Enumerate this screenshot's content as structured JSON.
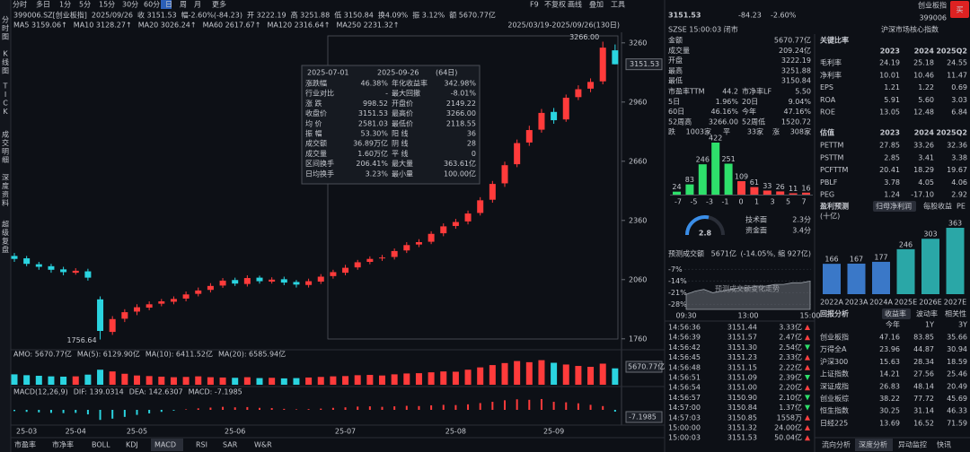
{
  "toolbar": {
    "tabs": [
      "分时",
      "多日",
      "1分",
      "5分",
      "15分",
      "30分",
      "60分",
      "日",
      "周",
      "月",
      "更多"
    ],
    "right": [
      "F9",
      "不复权",
      "画线",
      "叠加",
      "工具"
    ]
  },
  "side_tabs": [
    "分时图",
    "K线图",
    "TICK",
    "成交明细",
    "深度资料",
    "超级复盘"
  ],
  "kline_header": [
    [
      "399006.SZ[创业板指]",
      "#d9dce2"
    ],
    [
      "2025/09/26",
      "#d9dce2"
    ],
    [
      "收 3151.53",
      "#2ee06b"
    ],
    [
      "幅-2.60%(-84.23)",
      "#2ee06b"
    ],
    [
      "开 3222.19",
      "#ff4040"
    ],
    [
      "高 3251.88",
      "#ff4040"
    ],
    [
      "低 3150.84",
      "#2ee06b"
    ],
    [
      "换4.09%",
      "#d9dce2"
    ],
    [
      "振 3.12%",
      "#d9dce2"
    ],
    [
      "额 5670.77亿",
      "#d9dce2"
    ]
  ],
  "ma_line": [
    [
      "MA5 3159.06↑",
      "#f0a030"
    ],
    [
      "MA10 3128.27↑",
      "#f0e040"
    ],
    [
      "MA20 3026.24↑",
      "#e040e0"
    ],
    [
      "MA60 2617.67↑",
      "#40d040"
    ],
    [
      "MA120 2316.64↑",
      "#40c8d0"
    ],
    [
      "MA250 2231.32↑",
      "#4a7cff"
    ]
  ],
  "range": "2025/03/19-2025/09/26(130日)",
  "popup": {
    "start": "2025-07-01",
    "end": "2025-09-26",
    "days": "(64日)",
    "rows": [
      [
        "涨跌幅",
        "46.38%",
        "#ff4040"
      ],
      [
        "年化收益率",
        "342.98%",
        "#ff4040"
      ],
      [
        "行业对比",
        "-",
        "#c5c8cf"
      ],
      [
        "最大回撤",
        "-8.01%",
        "#2ee06b"
      ],
      [
        "涨 跌",
        "998.52",
        "#ff4040"
      ],
      [
        "开盘价",
        "2149.22",
        "#ff4040"
      ],
      [
        "收盘价",
        "3151.53",
        "#ff4040"
      ],
      [
        "最高价",
        "3266.00",
        "#ff4040"
      ],
      [
        "均 价",
        "2581.03",
        "#ff4040"
      ],
      [
        "最低价",
        "2118.55",
        "#ff4040"
      ],
      [
        "振 幅",
        "53.30%",
        "#ff4040"
      ],
      [
        "阳 线",
        "36",
        "#ff4040"
      ],
      [
        "成交额",
        "36.89万亿",
        "#c5c8cf"
      ],
      [
        "阴 线",
        "28",
        "#2ee06b"
      ],
      [
        "成交量",
        "1.60万亿",
        "#c5c8cf"
      ],
      [
        "平 线",
        "0",
        "#c5c8cf"
      ],
      [
        "区间换手",
        "206.41%",
        "#c5c8cf"
      ],
      [
        "最大量",
        "363.61亿",
        "#c5c8cf"
      ],
      [
        "日均换手",
        "3.23%",
        "#c5c8cf"
      ],
      [
        "最小量",
        "100.00亿",
        "#c5c8cf"
      ]
    ]
  },
  "amo_header": [
    [
      "AMO: 5670.77亿",
      "#d9dce2"
    ],
    [
      "MA(5): 6129.90亿",
      "#d9dce2"
    ],
    [
      "MA(10): 6411.52亿",
      "#f0e040"
    ],
    [
      "MA(20): 6585.94亿",
      "#e040e0"
    ]
  ],
  "macd_header": [
    [
      "MACD(12,26,9)",
      "#d9dce2"
    ],
    [
      "DIF: 139.0314",
      "#d9dce2"
    ],
    [
      "DEA: 142.6307",
      "#f0e040"
    ],
    [
      "MACD: -7.1985",
      "#e040e0"
    ]
  ],
  "indicator_tabs": [
    "市盈率",
    "市净率",
    "BOLL",
    "KDJ",
    "MACD",
    "RSI",
    "SAR",
    "W&R"
  ],
  "quote": {
    "price": "3151.53",
    "change": "-84.23",
    "pct": "-2.60%",
    "name": "创业板指",
    "code": "399006",
    "buy": "买",
    "status": "SZSE 15:00:03 闭市",
    "tag": "沪深市场核心指数"
  },
  "stats": [
    [
      "金额",
      "5670.77亿",
      "#d9dce2"
    ],
    [
      "成交量",
      "209.24亿",
      "#d9dce2"
    ],
    [
      "开盘",
      "3222.19",
      "#ff4040"
    ],
    [
      "最高",
      "3251.88",
      "#ff4040"
    ],
    [
      "最低",
      "3150.84",
      "#2ee06b"
    ]
  ],
  "stats2": [
    [
      "市盈率TTM",
      "44.2",
      "#d9dce2"
    ],
    [
      "市净率LF",
      "5.50",
      "#d9dce2"
    ],
    [
      "5日",
      "1.96%",
      "#ff4040"
    ],
    [
      "20日",
      "9.04%",
      "#ff4040"
    ],
    [
      "60日",
      "46.16%",
      "#ff4040"
    ],
    [
      "今年",
      "47.16%",
      "#ff4040"
    ],
    [
      "52周高",
      "3266.00",
      "#d9dce2"
    ],
    [
      "52周低",
      "1520.72",
      "#d9dce2"
    ]
  ],
  "breadth": [
    [
      "跌",
      "1003家",
      "#2ee06b"
    ],
    [
      "平",
      "33家",
      "#d9dce2"
    ],
    [
      "涨",
      "308家",
      "#ff4040"
    ]
  ],
  "gauge": {
    "score": 2.8,
    "items": [
      [
        "技术面",
        "2.3分"
      ],
      [
        "资金面",
        "3.4分"
      ]
    ]
  },
  "forecast": {
    "label": "预测成交额",
    "value": "5671亿",
    "change": "(-14.05%, 缩 927亿)"
  },
  "trades": {
    "rows": [
      [
        "14:56:36",
        "3151.44",
        "3.33亿"
      ],
      [
        "14:56:39",
        "3151.57",
        "2.47亿"
      ],
      [
        "14:56:42",
        "3151.30",
        "2.54亿"
      ],
      [
        "14:56:45",
        "3151.23",
        "2.33亿"
      ],
      [
        "14:56:48",
        "3151.15",
        "2.22亿"
      ],
      [
        "14:56:51",
        "3151.09",
        "2.39亿"
      ],
      [
        "14:56:54",
        "3151.00",
        "2.20亿"
      ],
      [
        "14:56:57",
        "3150.90",
        "2.10亿"
      ],
      [
        "14:57:00",
        "3150.84",
        "1.37亿"
      ],
      [
        "14:57:03",
        "3150.85",
        "1558万"
      ],
      [
        "15:00:00",
        "3151.32",
        "24.00亿"
      ],
      [
        "15:00:03",
        "3151.53",
        "50.04亿"
      ]
    ],
    "vol_colors": [
      "#ff4040",
      "#ff4040",
      "#2ee06b",
      "#ff4040",
      "#ff4040",
      "#2ee06b",
      "#ff4040",
      "#2ee06b",
      "#2ee06b",
      "#ff4040",
      "#ff4040",
      "#ff4040"
    ]
  },
  "ratios": {
    "title": "关键比率",
    "columns": [
      "2023",
      "2024",
      "2025Q2"
    ],
    "rows": [
      [
        "毛利率",
        "24.19",
        "25.18",
        "24.55"
      ],
      [
        "净利率",
        "10.01",
        "10.46",
        "11.47"
      ],
      [
        "EPS",
        "1.21",
        "1.22",
        "0.69"
      ],
      [
        "ROA",
        "5.91",
        "5.60",
        "3.03"
      ],
      [
        "ROE",
        "13.05",
        "12.48",
        "6.84"
      ]
    ]
  },
  "valuation": {
    "title": "估值",
    "columns": [
      "2023",
      "2024",
      "2025Q2"
    ],
    "rows": [
      [
        "PETTM",
        "27.85",
        "33.26",
        "32.36"
      ],
      [
        "PSTTM",
        "2.85",
        "3.41",
        "3.38"
      ],
      [
        "PCFTTM",
        "20.41",
        "18.29",
        "19.67"
      ],
      [
        "PBLF",
        "3.78",
        "4.05",
        "4.06"
      ],
      [
        "PEG",
        "1.24",
        "-17.10",
        "2.92"
      ]
    ]
  },
  "profit": {
    "title": "盈利预测",
    "unit": "(十亿)",
    "tabs": [
      "归母净利润",
      "每股收益",
      "PE"
    ]
  },
  "returns": {
    "title": "回报分析",
    "tabs": [
      "收益率",
      "波动率",
      "相关性"
    ],
    "columns": [
      "今年",
      "1Y",
      "3Y"
    ],
    "rows": [
      [
        "创业板指",
        "47.16",
        "83.85",
        "35.66"
      ],
      [
        "万得全A",
        "23.96",
        "44.87",
        "30.94"
      ],
      [
        "沪深300",
        "15.63",
        "28.34",
        "18.59"
      ],
      [
        "上证指数",
        "14.21",
        "27.56",
        "25.46"
      ],
      [
        "深证成指",
        "26.83",
        "48.14",
        "20.49"
      ],
      [
        "创业板综",
        "38.22",
        "77.72",
        "45.69"
      ],
      [
        "恒生指数",
        "30.25",
        "31.14",
        "46.33"
      ],
      [
        "日经225",
        "13.69",
        "16.52",
        "71.59"
      ]
    ]
  },
  "panel_tabs": [
    "流向分析",
    "深度分析",
    "异动监控",
    "快讯"
  ],
  "chart_data": [
    {
      "type": "candlestick",
      "open": [
        2180,
        2168,
        2138,
        2128,
        2112,
        2095,
        2102,
        1960,
        1795,
        1862,
        1898,
        1918,
        1938,
        1948,
        1964,
        1988,
        2008,
        2030,
        2058,
        2038,
        2070,
        2050,
        2062,
        2048,
        2033,
        2050,
        2078,
        2095,
        2122,
        2150,
        2168,
        2175,
        2208,
        2238,
        2252,
        2295,
        2332,
        2355,
        2398,
        2465,
        2548,
        2645,
        2755,
        2820,
        2910,
        2872,
        2985,
        3028,
        3065,
        3222.19
      ],
      "close": [
        2165,
        2140,
        2125,
        2110,
        2098,
        2105,
        2070,
        1800,
        1860,
        1895,
        1920,
        1935,
        1950,
        1962,
        1985,
        2005,
        2028,
        2055,
        2040,
        2068,
        2052,
        2060,
        2045,
        2035,
        2052,
        2075,
        2098,
        2120,
        2148,
        2165,
        2172,
        2205,
        2235,
        2250,
        2292,
        2330,
        2352,
        2395,
        2462,
        2545,
        2640,
        2752,
        2818,
        2905,
        2868,
        2982,
        3025,
        3062,
        3235.76,
        3151.53
      ],
      "high": [
        2195,
        2180,
        2150,
        2140,
        2125,
        2118,
        2115,
        1975,
        1875,
        1910,
        1935,
        1950,
        1962,
        1975,
        2000,
        2020,
        2042,
        2068,
        2070,
        2082,
        2080,
        2072,
        2075,
        2058,
        2065,
        2088,
        2110,
        2135,
        2160,
        2178,
        2185,
        2218,
        2250,
        2265,
        2305,
        2345,
        2368,
        2410,
        2478,
        2560,
        2658,
        2770,
        2840,
        2925,
        2930,
        2998,
        3045,
        3080,
        3266.0,
        3251.88
      ],
      "low": [
        2150,
        2128,
        2110,
        2095,
        2082,
        2085,
        2055,
        1756.64,
        1780,
        1845,
        1880,
        1905,
        1925,
        1935,
        1950,
        1975,
        1995,
        2018,
        2028,
        2025,
        2040,
        2040,
        2032,
        2020,
        2020,
        2038,
        2065,
        2082,
        2110,
        2138,
        2155,
        2162,
        2195,
        2225,
        2240,
        2280,
        2318,
        2340,
        2385,
        2450,
        2530,
        2630,
        2738,
        2805,
        2850,
        2860,
        2970,
        3010,
        3050,
        3150.84
      ],
      "ylim": [
        1700,
        3400
      ],
      "yticks": [
        3260,
        2960,
        2660,
        2360,
        2060,
        1760
      ],
      "up_color": "#ff3b3b",
      "down_color": "#2ad4e0",
      "high_label": "3266.00",
      "low_label": "1756.64",
      "last_label": "3151.53",
      "xticks": [
        {
          "value": 0,
          "label": "25-03"
        },
        {
          "value": 4,
          "label": "25-04"
        },
        {
          "value": 9,
          "label": "25-05"
        },
        {
          "value": 17,
          "label": "25-06"
        },
        {
          "value": 26,
          "label": "25-07"
        },
        {
          "value": 35,
          "label": "25-08"
        },
        {
          "value": 43,
          "label": "25-09"
        }
      ]
    },
    {
      "type": "bar",
      "values": [
        3600,
        3300,
        3100,
        2900,
        2800,
        2900,
        3500,
        5200,
        4600,
        3800,
        3200,
        3000,
        2800,
        2600,
        2700,
        2900,
        2600,
        2500,
        2400,
        2600,
        2300,
        2400,
        2200,
        2300,
        2500,
        2700,
        2900,
        3000,
        3300,
        3400,
        3200,
        3600,
        3900,
        4000,
        4300,
        4600,
        4500,
        5200,
        6000,
        6800,
        7500,
        8200,
        7800,
        8500,
        7600,
        7000,
        6500,
        6200,
        7300,
        5670.77
      ],
      "ylim": [
        0,
        9000
      ],
      "last_label": "5670.77亿"
    },
    {
      "type": "bar",
      "values": [
        -5,
        -8,
        -10,
        -12,
        -13,
        -12,
        -18,
        -40,
        -35,
        -28,
        -20,
        -14,
        -8,
        -3,
        2,
        6,
        9,
        12,
        10,
        11,
        8,
        7,
        4,
        2,
        3,
        5,
        8,
        10,
        13,
        14,
        12,
        14,
        16,
        15,
        18,
        20,
        19,
        22,
        27,
        32,
        38,
        42,
        40,
        43,
        32,
        30,
        26,
        20,
        15,
        -7.1985
      ],
      "ylim": [
        -50,
        50
      ],
      "last_label": "-7.1985"
    },
    {
      "type": "bar",
      "values": [
        24,
        83,
        246,
        422,
        251,
        109,
        61,
        33,
        26,
        11,
        16
      ],
      "colors": [
        "#2ee06b",
        "#2ee06b",
        "#2ee06b",
        "#2ee06b",
        "#2ee06b",
        "#ff4040",
        "#ff4040",
        "#ff4040",
        "#ff4040",
        "#ff4040",
        "#ff4040"
      ],
      "ylim": [
        0,
        422
      ],
      "xtick_labels": [
        "-7",
        "-5",
        "-3",
        "-1",
        "0",
        "1",
        "3",
        "5",
        "7"
      ]
    },
    {
      "type": "area",
      "values": [
        -22,
        -20,
        -19,
        -21,
        -20,
        -19,
        -18,
        -18,
        -17,
        -17,
        -16,
        -16,
        -15,
        -15,
        -14.05
      ],
      "color": "#6b7078",
      "ylim": [
        -31,
        -3
      ],
      "yticks": [
        {
          "value": -7,
          "label": "-7%"
        },
        {
          "value": -14,
          "label": "-14%"
        },
        {
          "value": -21,
          "label": "-21%"
        },
        {
          "value": -28,
          "label": "-28%"
        }
      ],
      "xticks": [
        {
          "value": 0,
          "label": "09:30"
        },
        {
          "value": 7,
          "label": "13:00"
        },
        {
          "value": 14,
          "label": "15:00"
        }
      ],
      "watermark": "预测成交额变化走势"
    },
    {
      "type": "bar",
      "categories": [
        "2022A",
        "2023A",
        "2024A",
        "2025E",
        "2026E",
        "2027E"
      ],
      "values": [
        166,
        167,
        177,
        246,
        303,
        363
      ],
      "colors": [
        "#3a78c8",
        "#3a78c8",
        "#3a78c8",
        "#2aa7a7",
        "#2aa7a7",
        "#2aa7a7"
      ],
      "ylim": [
        0,
        363
      ]
    }
  ]
}
